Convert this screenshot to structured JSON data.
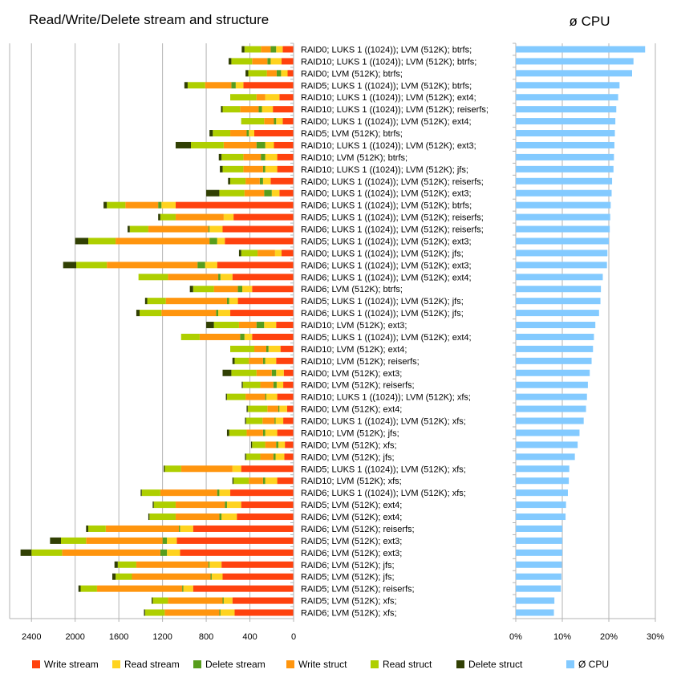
{
  "chart_data": [
    {
      "type": "bar",
      "orientation": "horizontal",
      "stacked": true,
      "title": "Read/Write/Delete stream and structure",
      "xlim": [
        0,
        2600
      ],
      "x_reversed": true,
      "x_ticks": [
        "2400",
        "2000",
        "1600",
        "1200",
        "800",
        "400",
        "0"
      ],
      "grid": true,
      "legend_position": "bottom",
      "categories": [
        "RAID0; LUKS 1 ((1024)); LVM (512K); btrfs;",
        "RAID10; LUKS 1 ((1024)); LVM (512K); btrfs;",
        "RAID0; LVM (512K); btrfs;",
        "RAID5; LUKS 1 ((1024)); LVM (512K); btrfs;",
        "RAID10; LUKS 1 ((1024)); LVM (512K); ext4;",
        "RAID10; LUKS 1 ((1024)); LVM (512K); reiserfs;",
        "RAID0; LUKS 1 ((1024)); LVM (512K); ext4;",
        "RAID5; LVM (512K); btrfs;",
        "RAID10; LUKS 1 ((1024)); LVM (512K); ext3;",
        "RAID10; LVM (512K); btrfs;",
        "RAID10; LUKS 1 ((1024)); LVM (512K); jfs;",
        "RAID0; LUKS 1 ((1024)); LVM (512K); reiserfs;",
        "RAID0; LUKS 1 ((1024)); LVM (512K); ext3;",
        "RAID6; LUKS 1 ((1024)); LVM (512K); btrfs;",
        "RAID5; LUKS 1 ((1024)); LVM (512K); reiserfs;",
        "RAID6; LUKS 1 ((1024)); LVM (512K); reiserfs;",
        "RAID5; LUKS 1 ((1024)); LVM (512K); ext3;",
        "RAID0; LUKS 1 ((1024)); LVM (512K); jfs;",
        "RAID6; LUKS 1 ((1024)); LVM (512K); ext3;",
        "RAID6; LUKS 1 ((1024)); LVM (512K); ext4;",
        "RAID6; LVM (512K); btrfs;",
        "RAID5; LUKS 1 ((1024)); LVM (512K); jfs;",
        "RAID6; LUKS 1 ((1024)); LVM (512K); jfs;",
        "RAID10; LVM (512K); ext3;",
        "RAID5; LUKS 1 ((1024)); LVM (512K); ext4;",
        "RAID10; LVM (512K); ext4;",
        "RAID10; LVM (512K); reiserfs;",
        "RAID0; LVM (512K); ext3;",
        "RAID0; LVM (512K); reiserfs;",
        "RAID10; LUKS 1 ((1024)); LVM (512K); xfs;",
        "RAID0; LVM (512K); ext4;",
        "RAID0; LUKS 1 ((1024)); LVM (512K); xfs;",
        "RAID10; LVM (512K); jfs;",
        "RAID0; LVM (512K); xfs;",
        "RAID0; LVM (512K); jfs;",
        "RAID5; LUKS 1 ((1024)); LVM (512K); xfs;",
        "RAID10; LVM (512K); xfs;",
        "RAID6; LUKS 1 ((1024)); LVM (512K); xfs;",
        "RAID5; LVM (512K); ext4;",
        "RAID6; LVM (512K); ext4;",
        "RAID6; LVM (512K); reiserfs;",
        "RAID5; LVM (512K); ext3;",
        "RAID6; LVM (512K); ext3;",
        "RAID6; LVM (512K); jfs;",
        "RAID5; LVM (512K); jfs;",
        "RAID5; LVM (512K); reiserfs;",
        "RAID5; LVM (512K); xfs;",
        "RAID6; LVM (512K); xfs;"
      ],
      "series": [
        {
          "name": "Write stream",
          "color": "#ff420e",
          "values": [
            100,
            110,
            55,
            460,
            130,
            190,
            100,
            360,
            180,
            150,
            150,
            210,
            130,
            1080,
            550,
            650,
            630,
            110,
            700,
            560,
            380,
            510,
            580,
            160,
            380,
            120,
            160,
            90,
            95,
            150,
            60,
            95,
            150,
            80,
            85,
            480,
            150,
            580,
            480,
            520,
            920,
            1070,
            1040,
            660,
            650,
            920,
            560,
            540
          ]
        },
        {
          "name": "Read stream",
          "color": "#ffd320",
          "values": [
            60,
            100,
            60,
            70,
            130,
            100,
            60,
            50,
            80,
            110,
            110,
            70,
            70,
            130,
            90,
            120,
            70,
            60,
            110,
            110,
            90,
            80,
            110,
            110,
            70,
            110,
            100,
            70,
            60,
            100,
            70,
            70,
            110,
            60,
            80,
            80,
            110,
            100,
            130,
            140,
            120,
            90,
            120,
            110,
            100,
            90,
            80,
            130
          ]
        },
        {
          "name": "Delete stream",
          "color": "#579d1c",
          "values": [
            50,
            30,
            40,
            40,
            0,
            30,
            20,
            20,
            80,
            40,
            20,
            30,
            70,
            30,
            0,
            10,
            70,
            0,
            70,
            20,
            40,
            20,
            20,
            70,
            40,
            20,
            20,
            40,
            30,
            10,
            10,
            10,
            20,
            20,
            20,
            0,
            20,
            20,
            20,
            20,
            10,
            40,
            60,
            10,
            10,
            10,
            10,
            10
          ]
        },
        {
          "name": "Write struct",
          "color": "#ff950e",
          "values": [
            90,
            140,
            90,
            240,
            80,
            170,
            90,
            150,
            300,
            160,
            180,
            130,
            180,
            300,
            440,
            550,
            860,
            160,
            830,
            460,
            220,
            560,
            500,
            160,
            370,
            110,
            130,
            140,
            120,
            180,
            100,
            110,
            150,
            100,
            120,
            470,
            130,
            520,
            450,
            400,
            670,
            700,
            900,
            660,
            720,
            780,
            500,
            500
          ]
        },
        {
          "name": "Read struct",
          "color": "#aecf00",
          "values": [
            150,
            190,
            170,
            160,
            240,
            160,
            210,
            160,
            300,
            200,
            190,
            140,
            230,
            170,
            140,
            170,
            250,
            150,
            280,
            270,
            190,
            170,
            200,
            230,
            170,
            220,
            130,
            230,
            160,
            170,
            180,
            150,
            160,
            120,
            130,
            150,
            140,
            170,
            200,
            240,
            160,
            230,
            280,
            170,
            150,
            150,
            140,
            180
          ]
        },
        {
          "name": "Delete struct",
          "color": "#314004",
          "values": [
            25,
            25,
            25,
            30,
            0,
            15,
            0,
            30,
            140,
            25,
            25,
            20,
            120,
            30,
            20,
            20,
            120,
            20,
            120,
            0,
            30,
            20,
            30,
            70,
            0,
            0,
            20,
            80,
            10,
            10,
            10,
            10,
            20,
            10,
            10,
            10,
            10,
            10,
            10,
            10,
            20,
            100,
            100,
            30,
            30,
            20,
            10,
            10
          ]
        }
      ]
    },
    {
      "type": "bar",
      "orientation": "horizontal",
      "title": "ø CPU",
      "xlim": [
        0,
        30
      ],
      "x_ticks": [
        "0%",
        "10%",
        "20%",
        "30%"
      ],
      "grid": true,
      "legend_position": "bottom",
      "series": [
        {
          "name": "Ø CPU",
          "color": "#83caff",
          "values": [
            27.8,
            25.3,
            25.0,
            22.3,
            22.0,
            21.6,
            21.4,
            21.3,
            21.2,
            21.1,
            21.0,
            20.7,
            20.6,
            20.4,
            20.3,
            20.2,
            20.0,
            19.7,
            19.6,
            18.7,
            18.3,
            18.2,
            17.9,
            17.1,
            16.8,
            16.6,
            16.3,
            15.9,
            15.5,
            15.3,
            15.1,
            14.6,
            13.7,
            13.3,
            12.7,
            11.5,
            11.4,
            11.2,
            10.8,
            10.7,
            10.0,
            10.0,
            10.0,
            9.9,
            9.8,
            9.7,
            8.3,
            8.2
          ]
        }
      ]
    }
  ]
}
